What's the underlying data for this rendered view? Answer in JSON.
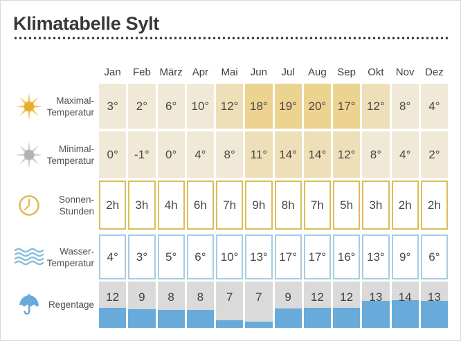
{
  "header": {
    "title": "Klimatabelle Sylt"
  },
  "chart_data": {
    "type": "table",
    "title": "Klimatabelle Sylt",
    "categories": [
      "Jan",
      "Feb",
      "März",
      "Apr",
      "Mai",
      "Jun",
      "Jul",
      "Aug",
      "Sep",
      "Okt",
      "Nov",
      "Dez"
    ],
    "series": [
      {
        "name": "Maximal-Temperatur",
        "unit": "°C",
        "values": [
          3,
          2,
          6,
          10,
          12,
          18,
          19,
          20,
          17,
          12,
          8,
          4
        ]
      },
      {
        "name": "Minimal-Temperatur",
        "unit": "°C",
        "values": [
          0,
          -1,
          0,
          4,
          8,
          11,
          14,
          14,
          12,
          8,
          4,
          2
        ]
      },
      {
        "name": "Sonnen-Stunden",
        "unit": "h",
        "values": [
          2,
          3,
          4,
          6,
          7,
          9,
          8,
          7,
          5,
          3,
          2,
          2
        ]
      },
      {
        "name": "Wasser-Temperatur",
        "unit": "°C",
        "values": [
          4,
          3,
          5,
          6,
          10,
          13,
          17,
          17,
          16,
          13,
          9,
          6
        ]
      },
      {
        "name": "Regentage",
        "unit": "Tage",
        "values": [
          12,
          9,
          8,
          8,
          7,
          7,
          9,
          12,
          12,
          13,
          14,
          13
        ]
      }
    ],
    "legend_position": "none",
    "grid": false
  },
  "rows": [
    {
      "id": "max-temp",
      "icon": "sun-icon",
      "label_lines": [
        "Maximal-",
        "Temperatur"
      ],
      "unit": "°",
      "style": "beige",
      "shades": [
        "light",
        "light",
        "light",
        "light",
        "medium",
        "gold",
        "gold",
        "gold",
        "gold",
        "medium",
        "light",
        "light"
      ]
    },
    {
      "id": "min-temp",
      "icon": "sun-gray-icon",
      "label_lines": [
        "Minimal-",
        "Temperatur"
      ],
      "unit": "°",
      "style": "beige",
      "shades": [
        "light",
        "light",
        "light",
        "light",
        "light",
        "medium",
        "medium",
        "medium",
        "medium",
        "light",
        "light",
        "light"
      ]
    },
    {
      "id": "sun-hours",
      "icon": "clock-icon",
      "label_lines": [
        "Sonnen-",
        "Stunden"
      ],
      "unit": "h",
      "style": "outline-gold"
    },
    {
      "id": "water-temp",
      "icon": "waves-icon",
      "label_lines": [
        "Wasser-",
        "Temperatur"
      ],
      "unit": "°",
      "style": "outline-blue"
    },
    {
      "id": "rain-days",
      "icon": "umbrella-icon",
      "label_lines": [
        "Regentage"
      ],
      "unit": "",
      "style": "rain",
      "fill_pct": [
        44,
        41,
        39,
        39,
        16,
        14,
        42,
        43,
        43,
        58,
        59,
        58
      ]
    }
  ],
  "colors": {
    "cell_light": "#f1e9d7",
    "cell_medium": "#eedfb8",
    "cell_gold": "#ecd390",
    "sun_hours_border": "#dcbc58",
    "water_border": "#a6cce1",
    "rain_fill": "#68abdb",
    "rain_cell_bg": "#dadada",
    "sun_yellow": "#e8ae2e",
    "sun_gray": "#b2b2b2",
    "text_dark": "#383838"
  }
}
